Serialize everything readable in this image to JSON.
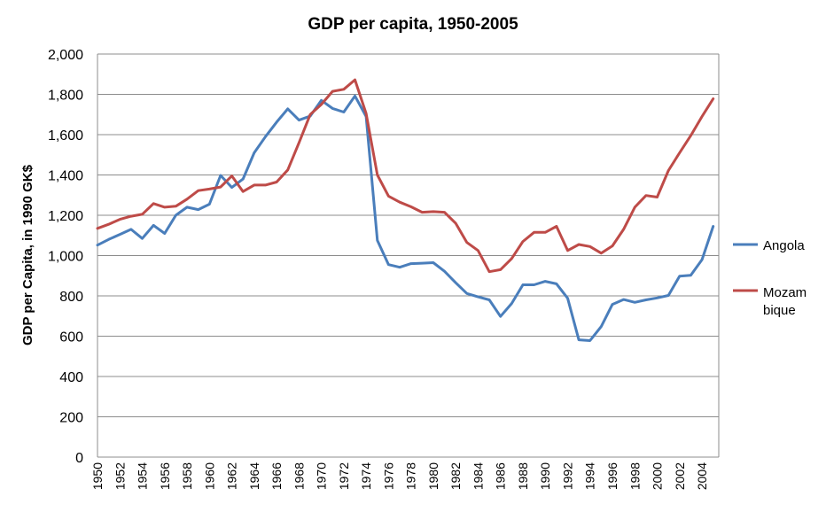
{
  "chart_data": {
    "type": "line",
    "title": "GDP per capita, 1950-2005",
    "xlabel": "",
    "ylabel": "GDP per Capita, in 1990 GK$",
    "xlim": [
      1950,
      2005
    ],
    "ylim": [
      0,
      2000
    ],
    "y_ticks": [
      0,
      200,
      400,
      600,
      800,
      1000,
      1200,
      1400,
      1600,
      1800,
      2000
    ],
    "y_tick_labels": [
      "0",
      "200",
      "400",
      "600",
      "800",
      "1,000",
      "1,200",
      "1,400",
      "1,600",
      "1,800",
      "2,000"
    ],
    "x_tick_labels": [
      "1950",
      "1952",
      "1954",
      "1956",
      "1958",
      "1960",
      "1962",
      "1964",
      "1966",
      "1968",
      "1970",
      "1972",
      "1974",
      "1976",
      "1978",
      "1980",
      "1982",
      "1984",
      "1986",
      "1988",
      "1990",
      "1992",
      "1994",
      "1996",
      "1998",
      "2000",
      "2002",
      "2004"
    ],
    "grid": true,
    "legend_position": "right",
    "x": [
      1950,
      1951,
      1952,
      1953,
      1954,
      1955,
      1956,
      1957,
      1958,
      1959,
      1960,
      1961,
      1962,
      1963,
      1964,
      1965,
      1966,
      1967,
      1968,
      1969,
      1970,
      1971,
      1972,
      1973,
      1974,
      1975,
      1976,
      1977,
      1978,
      1979,
      1980,
      1981,
      1982,
      1983,
      1984,
      1985,
      1986,
      1987,
      1988,
      1989,
      1990,
      1991,
      1992,
      1993,
      1994,
      1995,
      1996,
      1997,
      1998,
      1999,
      2000,
      2001,
      2002,
      2003,
      2004,
      2005
    ],
    "series": [
      {
        "name": "Angola",
        "color": "#4a7ebb",
        "values": [
          1052,
          1080,
          1105,
          1130,
          1085,
          1150,
          1110,
          1200,
          1240,
          1228,
          1255,
          1398,
          1338,
          1380,
          1510,
          1590,
          1662,
          1728,
          1672,
          1692,
          1770,
          1730,
          1712,
          1792,
          1690,
          1075,
          955,
          942,
          960,
          962,
          965,
          922,
          865,
          812,
          795,
          780,
          698,
          762,
          855,
          855,
          872,
          860,
          788,
          582,
          578,
          648,
          758,
          782,
          768,
          780,
          790,
          802,
          898,
          902,
          980,
          1145
        ]
      },
      {
        "name": "Mozam bique",
        "color": "#be4b48",
        "values": [
          1135,
          1155,
          1180,
          1195,
          1205,
          1258,
          1240,
          1245,
          1280,
          1322,
          1330,
          1340,
          1395,
          1318,
          1350,
          1350,
          1365,
          1425,
          1560,
          1700,
          1750,
          1815,
          1825,
          1872,
          1705,
          1400,
          1295,
          1265,
          1242,
          1215,
          1218,
          1215,
          1160,
          1065,
          1025,
          920,
          930,
          985,
          1070,
          1115,
          1115,
          1145,
          1025,
          1055,
          1045,
          1012,
          1048,
          1130,
          1240,
          1298,
          1290,
          1422,
          1510,
          1595,
          1690,
          1778
        ]
      }
    ]
  }
}
